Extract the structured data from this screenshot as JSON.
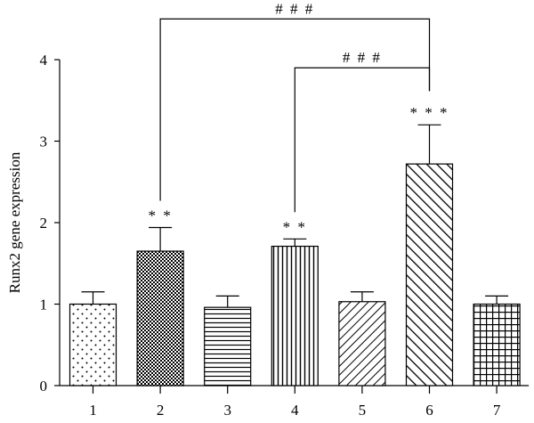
{
  "chart_data": {
    "type": "bar",
    "categories": [
      "1",
      "2",
      "3",
      "4",
      "5",
      "6",
      "7"
    ],
    "values": [
      1.0,
      1.65,
      0.96,
      1.71,
      1.03,
      2.72,
      1.0
    ],
    "errors": [
      0.15,
      0.29,
      0.14,
      0.09,
      0.12,
      0.48,
      0.1
    ],
    "patterns": [
      "dots",
      "checker",
      "hlines",
      "vlines",
      "diag-down",
      "diag-up",
      "grid"
    ],
    "xlabel": "",
    "ylabel": "Runx2 gene expression",
    "ylim": [
      0,
      4
    ],
    "yticks": [
      "0",
      "1",
      "2",
      "3",
      "4"
    ],
    "grid": false,
    "bar_significance": [
      {
        "category": "2",
        "label": "* *"
      },
      {
        "category": "4",
        "label": "* *"
      },
      {
        "category": "6",
        "label": "* * *"
      }
    ],
    "comparisons": [
      {
        "from": "2",
        "to": "6",
        "level": 4.5,
        "label": "# # #"
      },
      {
        "from": "4",
        "to": "6",
        "level": 3.9,
        "label": "# # #"
      }
    ]
  }
}
